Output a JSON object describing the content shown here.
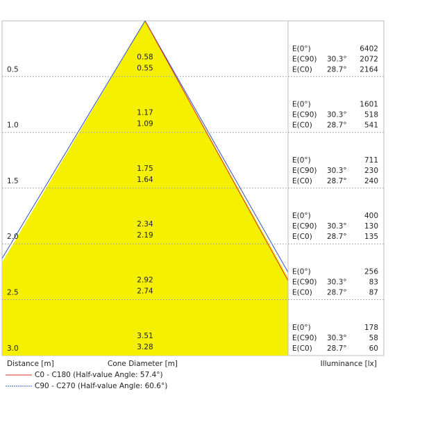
{
  "footer": {
    "distance_label": "Distance [m]",
    "diameter_label": "Cone Diameter [m]",
    "illuminance_label": "Illuminance [lx]"
  },
  "legend": [
    {
      "name": "C0 - C180 (Half-value Angle: 57.4°)",
      "color": "#e03020"
    },
    {
      "name": "C90 - C270 (Half-value Angle: 60.6°)",
      "color": "#3050c0"
    }
  ],
  "row_labels": [
    "E(0°)",
    "E(C90)",
    "E(C0)"
  ],
  "angles": {
    "c90": "30.3°",
    "c0": "28.7°"
  },
  "rows": [
    {
      "distance": "0.5",
      "diameters": [
        "0.58",
        "0.55"
      ],
      "values": [
        "6402",
        "2072",
        "2164"
      ]
    },
    {
      "distance": "1.0",
      "diameters": [
        "1.17",
        "1.09"
      ],
      "values": [
        "1601",
        "518",
        "541"
      ]
    },
    {
      "distance": "1.5",
      "diameters": [
        "1.75",
        "1.64"
      ],
      "values": [
        "711",
        "230",
        "240"
      ]
    },
    {
      "distance": "2.0",
      "diameters": [
        "2.34",
        "2.19"
      ],
      "values": [
        "400",
        "130",
        "135"
      ]
    },
    {
      "distance": "2.5",
      "diameters": [
        "2.92",
        "2.74"
      ],
      "values": [
        "256",
        "83",
        "87"
      ]
    },
    {
      "distance": "3.0",
      "diameters": [
        "3.51",
        "3.28"
      ],
      "values": [
        "178",
        "58",
        "60"
      ]
    }
  ]
}
